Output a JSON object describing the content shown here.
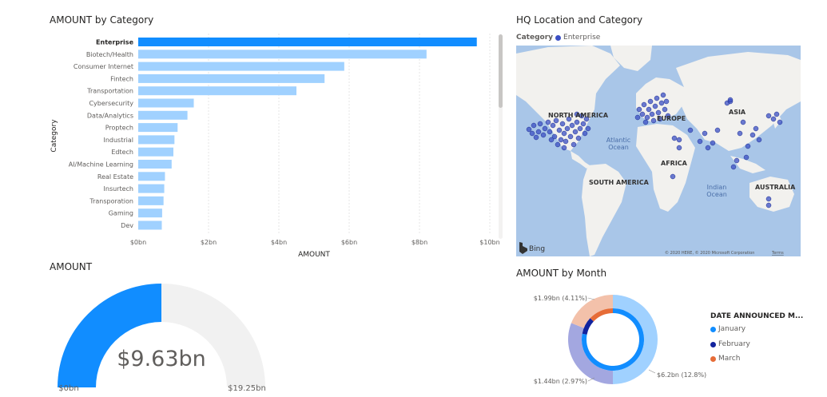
{
  "bar_chart": {
    "title": "AMOUNT by Category",
    "xlabel": "AMOUNT",
    "ylabel": "Category"
  },
  "map": {
    "title": "HQ Location and Category",
    "legend_label": "Category",
    "legend_item": "Enterprise",
    "legend_color": "#3b4fc4",
    "continents": {
      "north_america": "NORTH AMERICA",
      "south_america": "SOUTH AMERICA",
      "europe": "EUROPE",
      "africa": "AFRICA",
      "asia": "ASIA",
      "australia": "AUSTRALIA"
    },
    "oceans": {
      "atlantic_1": "Atlantic",
      "atlantic_2": "Ocean",
      "indian_1": "Indian",
      "indian_2": "Ocean"
    },
    "bing": "Bing",
    "copyright": "© 2020 HERE, © 2020 Microsoft Corporation",
    "terms": "Terms"
  },
  "gauge": {
    "title": "AMOUNT",
    "value_label": "$9.63bn",
    "min_label": "$0bn",
    "max_label": "$19.25bn",
    "fill_fraction": 0.5,
    "fill_color": "#118dff",
    "track_color": "#f1f1f1"
  },
  "donut": {
    "title": "AMOUNT by Month",
    "legend_title": "DATE ANNOUNCED M...",
    "labels": {
      "top": "$1.99bn (4.11%)",
      "left": "$1.44bn (2.97%)",
      "right": "$6.2bn (12.8%)"
    },
    "legend": [
      {
        "name": "January",
        "color": "#118dff"
      },
      {
        "name": "February",
        "color": "#12239e"
      },
      {
        "name": "March",
        "color": "#e66c37"
      }
    ]
  },
  "chart_data": [
    {
      "type": "bar",
      "orientation": "horizontal",
      "title": "AMOUNT by Category",
      "xlabel": "AMOUNT",
      "ylabel": "Category",
      "categories": [
        "Enterprise",
        "Biotech/Health",
        "Consumer Internet",
        "Fintech",
        "Transportation",
        "Cybersecurity",
        "Data/Analytics",
        "Proptech",
        "Industrial",
        "Edtech",
        "AI/Machine Learning",
        "Real Estate",
        "Insurtech",
        "Transporation",
        "Gaming",
        "Dev"
      ],
      "values": [
        9.63,
        8.2,
        5.86,
        5.3,
        4.5,
        1.58,
        1.4,
        1.12,
        1.03,
        1.0,
        0.95,
        0.76,
        0.74,
        0.72,
        0.68,
        0.67
      ],
      "highlight": "Enterprise",
      "highlight_color": "#118dff",
      "bar_color": "#a0d1ff",
      "xlim": [
        0,
        10
      ],
      "xticks": [
        0,
        2,
        4,
        6,
        8,
        10
      ],
      "xtick_labels": [
        "$0bn",
        "$2bn",
        "$4bn",
        "$6bn",
        "$8bn",
        "$10bn"
      ],
      "grid": true
    },
    {
      "type": "pie",
      "title": "AMOUNT by Month",
      "outer_ring": [
        {
          "name": "January",
          "share": 0.5,
          "color": "#a0d1ff",
          "label": "$6.2bn (12.8%)"
        },
        {
          "name": "February",
          "share": 0.31,
          "color": "#a3a7e0",
          "label": "$1.44bn (2.97%)"
        },
        {
          "name": "March",
          "share": 0.19,
          "color": "#f3c1aa",
          "label": "$1.99bn (4.11%)"
        }
      ],
      "inner_ring": [
        {
          "name": "January",
          "share": 0.78,
          "color": "#118dff"
        },
        {
          "name": "February",
          "share": 0.09,
          "color": "#12239e"
        },
        {
          "name": "March",
          "share": 0.13,
          "color": "#e66c37"
        }
      ]
    }
  ]
}
